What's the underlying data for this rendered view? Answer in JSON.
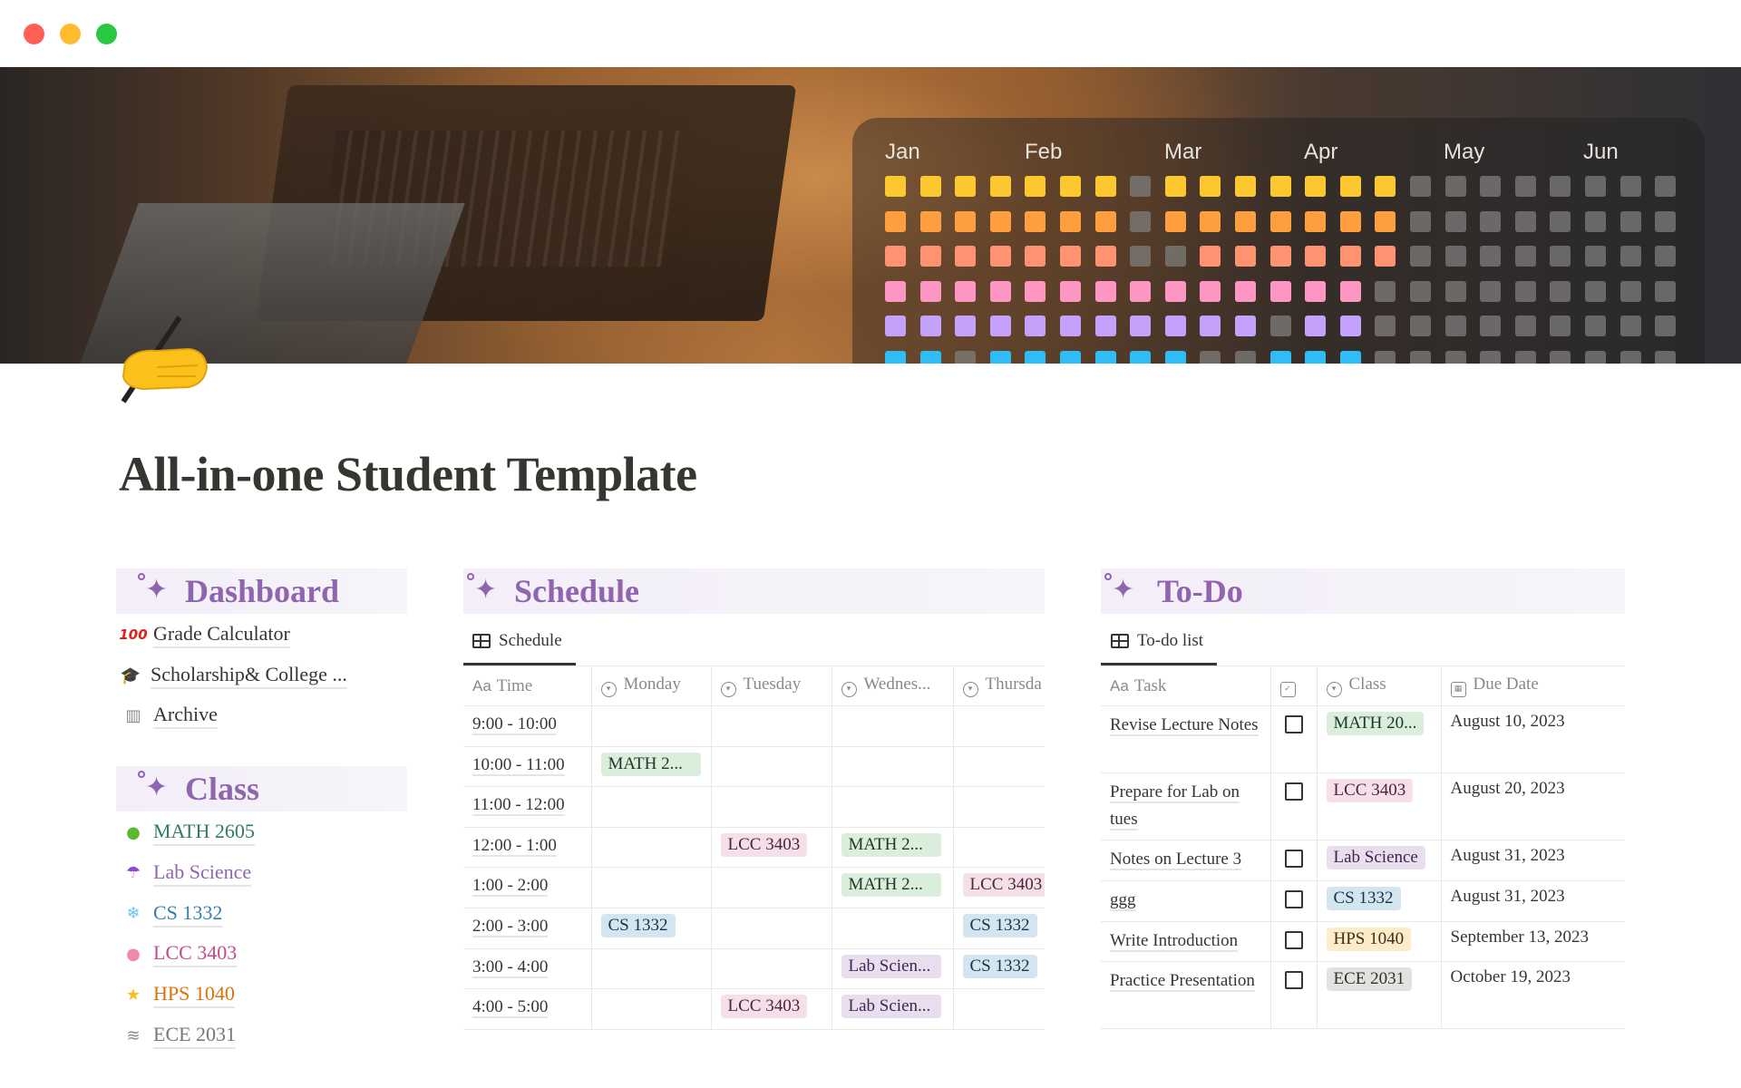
{
  "window": {
    "controls": [
      {
        "name": "close",
        "color": "#ff5f57"
      },
      {
        "name": "minimize",
        "color": "#febc2e"
      },
      {
        "name": "maximize",
        "color": "#28c840"
      }
    ]
  },
  "cover": {
    "months": [
      "Jan",
      "Feb",
      "Mar",
      "Apr",
      "May",
      "Jun"
    ],
    "tracker_rows": [
      {
        "color": "#fdc82f",
        "pattern": "11111110111111100000000"
      },
      {
        "color": "#fe9e3e",
        "pattern": "11111110111111100000000"
      },
      {
        "color": "#ff9270",
        "pattern": "11111110011111100000000"
      },
      {
        "color": "#fe96c4",
        "pattern": "11111111111111000000000"
      },
      {
        "color": "#c4a1fb",
        "pattern": "11111111111011000000000"
      },
      {
        "color": "#2fbdf8",
        "pattern": "11011111100111000000000"
      }
    ],
    "inactive_color": "#7f7d7c"
  },
  "page": {
    "icon": "writing-hand",
    "title": "All-in-one Student Template"
  },
  "dashboard": {
    "title": "Dashboard",
    "items": [
      {
        "label": "Grade Calculator",
        "icon": "hundred-points"
      },
      {
        "label": "Scholarship& College ...",
        "icon": "graduation-cap"
      },
      {
        "label": "Archive",
        "icon": "wastebasket"
      }
    ]
  },
  "class": {
    "title": "Class",
    "items": [
      {
        "label": "MATH 2605",
        "icon": "green-apple",
        "color": "#2f7d5b"
      },
      {
        "label": "Lab Science",
        "icon": "umbrella",
        "color": "#9065b0"
      },
      {
        "label": "CS 1332",
        "icon": "snowflake",
        "color": "#337ea9"
      },
      {
        "label": "LCC 3403",
        "icon": "brain",
        "color": "#c14c8a"
      },
      {
        "label": "HPS 1040",
        "icon": "glowing-star",
        "color": "#d9730d"
      },
      {
        "label": "ECE 2031",
        "icon": "tornado",
        "color": "#787774"
      }
    ]
  },
  "tag_colors": {
    "MATH": {
      "bg": "#dbeddb",
      "fg": "#1c3829"
    },
    "LCC": {
      "bg": "#f5e0e9",
      "fg": "#4c2337"
    },
    "CS": {
      "bg": "#d3e5ef",
      "fg": "#183347"
    },
    "Lab": {
      "bg": "#e8deee",
      "fg": "#412454"
    },
    "HPS": {
      "bg": "#fdecc8",
      "fg": "#402c1b"
    },
    "ECE": {
      "bg": "#e3e2e0",
      "fg": "#32302c"
    }
  },
  "schedule": {
    "title": "Schedule",
    "view_tab": "Schedule",
    "columns": [
      "Time",
      "Monday",
      "Tuesday",
      "Wednes...",
      "Thursda"
    ],
    "rows": [
      [
        "9:00 - 10:00",
        "",
        "",
        "",
        ""
      ],
      [
        "10:00 - 11:00",
        "MATH 2...",
        "",
        "",
        ""
      ],
      [
        "11:00 - 12:00",
        "",
        "",
        "",
        ""
      ],
      [
        "12:00 - 1:00",
        "",
        "LCC 3403",
        "MATH 2...",
        ""
      ],
      [
        "1:00 - 2:00",
        "",
        "",
        "MATH 2...",
        "LCC 3403"
      ],
      [
        "2:00 - 3:00",
        "CS 1332",
        "",
        "",
        "CS 1332"
      ],
      [
        "3:00 - 4:00",
        "",
        "",
        "Lab Scien...",
        "CS 1332"
      ],
      [
        "4:00 - 5:00",
        "",
        "LCC 3403",
        "Lab Scien...",
        ""
      ]
    ]
  },
  "todo": {
    "title": "To-Do",
    "view_tab": "To-do list",
    "columns": [
      "Task",
      "",
      "Class",
      "Due Date"
    ],
    "rows": [
      {
        "task": "Revise Lecture Notes",
        "done": false,
        "class": "MATH 20...",
        "due": "August 10, 2023"
      },
      {
        "task": "Prepare for Lab on tues",
        "done": false,
        "class": "LCC 3403",
        "due": "August 20, 2023"
      },
      {
        "task": "Notes on Lecture 3",
        "done": false,
        "class": "Lab Science",
        "due": "August 31, 2023"
      },
      {
        "task": "ggg",
        "done": false,
        "class": "CS 1332",
        "due": "August 31, 2023"
      },
      {
        "task": "Write Introduction",
        "done": false,
        "class": "HPS 1040",
        "due": "September 13, 2023"
      },
      {
        "task": "Practice Presentation",
        "done": false,
        "class": "ECE 2031",
        "due": "October 19, 2023"
      }
    ]
  }
}
